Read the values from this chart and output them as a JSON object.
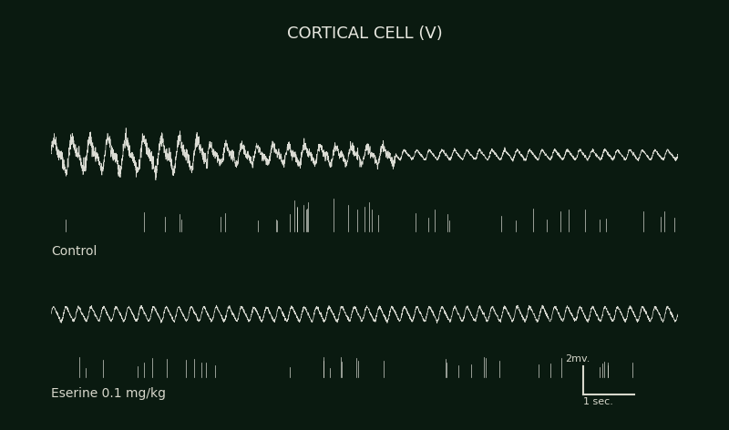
{
  "title": "CORTICAL CELL (V)",
  "title_color": "#e8e8e0",
  "title_fontsize": 13,
  "background_color": "#0a1a10",
  "label_control": "Control",
  "label_eserine": "Eserine 0.1 mg/kg",
  "scale_label_mv": "2mv.",
  "scale_label_sec": "1 sec.",
  "label_color": "#d8d8cc",
  "label_fontsize": 10,
  "trace_color": "#e8e8e0",
  "n_points": 4000,
  "fig_width": 8.0,
  "fig_height": 4.72
}
